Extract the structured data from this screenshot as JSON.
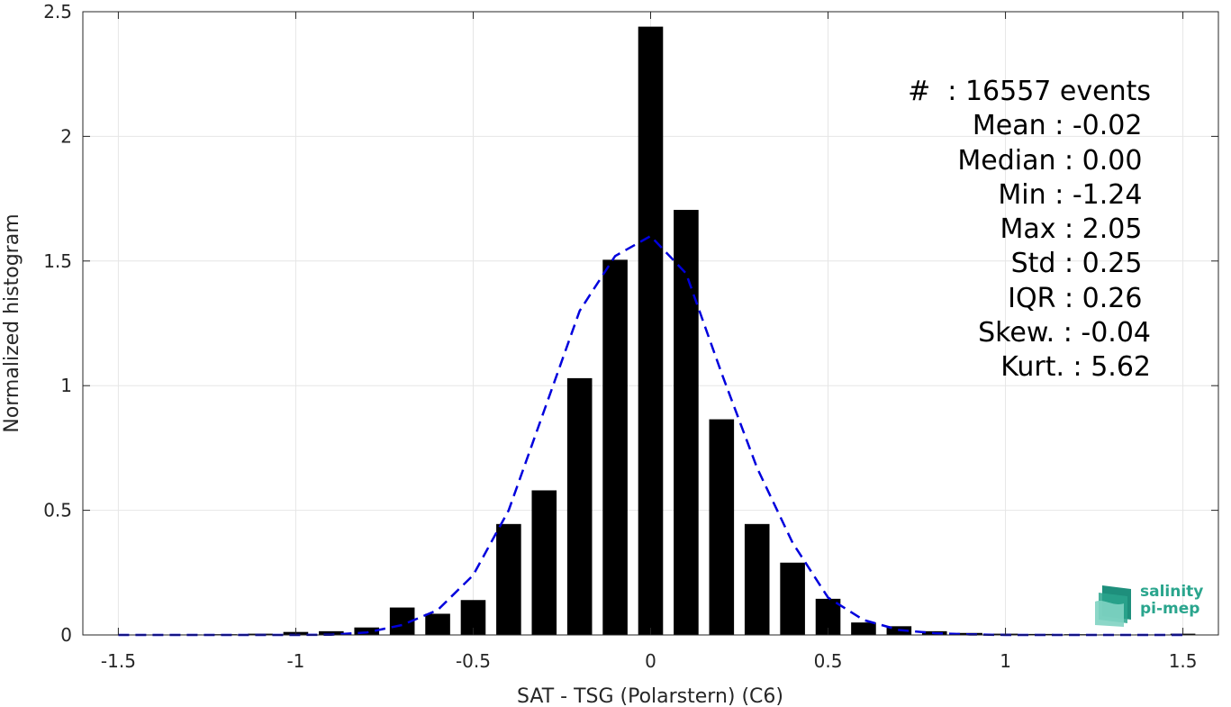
{
  "chart_data": {
    "type": "bar",
    "xlabel": "SAT - TSG (Polarstern) (C6)",
    "ylabel": "Normalized histogram",
    "xlim": [
      -1.6,
      1.6
    ],
    "ylim": [
      0,
      2.5
    ],
    "x_ticks": [
      "-1.5",
      "-1",
      "-0.5",
      "0",
      "0.5",
      "1",
      "1.5"
    ],
    "x_tick_values": [
      -1.5,
      -1,
      -0.5,
      0,
      0.5,
      1,
      1.5
    ],
    "y_ticks": [
      "0",
      "0.5",
      "1",
      "1.5",
      "2",
      "2.5"
    ],
    "y_tick_values": [
      0,
      0.5,
      1,
      1.5,
      2,
      2.5
    ],
    "grid": true,
    "bar_color": "#000000",
    "bar_width": 0.07,
    "bars": {
      "x": [
        -1.5,
        -1.4,
        -1.3,
        -1.2,
        -1.1,
        -1.0,
        -0.9,
        -0.8,
        -0.7,
        -0.6,
        -0.5,
        -0.4,
        -0.3,
        -0.2,
        -0.1,
        0.0,
        0.1,
        0.2,
        0.3,
        0.4,
        0.5,
        0.6,
        0.7,
        0.8,
        0.9,
        1.0,
        1.1,
        1.2,
        1.3,
        1.4,
        1.5
      ],
      "values": [
        0.0,
        0.0,
        0.002,
        0.003,
        0.005,
        0.012,
        0.015,
        0.03,
        0.11,
        0.085,
        0.14,
        0.445,
        0.58,
        1.03,
        1.505,
        2.44,
        1.705,
        0.865,
        0.445,
        0.29,
        0.145,
        0.05,
        0.035,
        0.015,
        0.008,
        0.005,
        0.004,
        0.003,
        0.002,
        0.002,
        0.005
      ]
    },
    "fit": {
      "color": "#0000dd",
      "style": "dashed",
      "x": [
        -1.5,
        -1.4,
        -1.3,
        -1.2,
        -1.1,
        -1.0,
        -0.9,
        -0.8,
        -0.7,
        -0.6,
        -0.5,
        -0.4,
        -0.3,
        -0.2,
        -0.1,
        0.0,
        0.1,
        0.2,
        0.3,
        0.4,
        0.5,
        0.6,
        0.7,
        0.8,
        0.9,
        1.0,
        1.1,
        1.2,
        1.3,
        1.4,
        1.5
      ],
      "y": [
        0.0,
        0.0,
        0.0,
        0.0,
        0.0,
        0.0,
        0.001,
        0.01,
        0.04,
        0.1,
        0.24,
        0.5,
        0.9,
        1.3,
        1.52,
        1.6,
        1.45,
        1.05,
        0.67,
        0.37,
        0.15,
        0.06,
        0.02,
        0.007,
        0.002,
        0.0,
        0.0,
        0.0,
        0.0,
        0.0,
        0.0
      ]
    }
  },
  "stats": [
    "#  : 16557 events",
    "Mean : -0.02 ",
    "Median : 0.00 ",
    "Min : -1.24 ",
    "Max : 2.05 ",
    "Std : 0.25 ",
    "IQR : 0.26 ",
    "Skew. : -0.04",
    "Kurt. : 5.62"
  ],
  "logo": {
    "line1": "salinity",
    "line2": "pi-mep",
    "color": "#2aa58d",
    "icon": "salinity-wave-icon"
  }
}
